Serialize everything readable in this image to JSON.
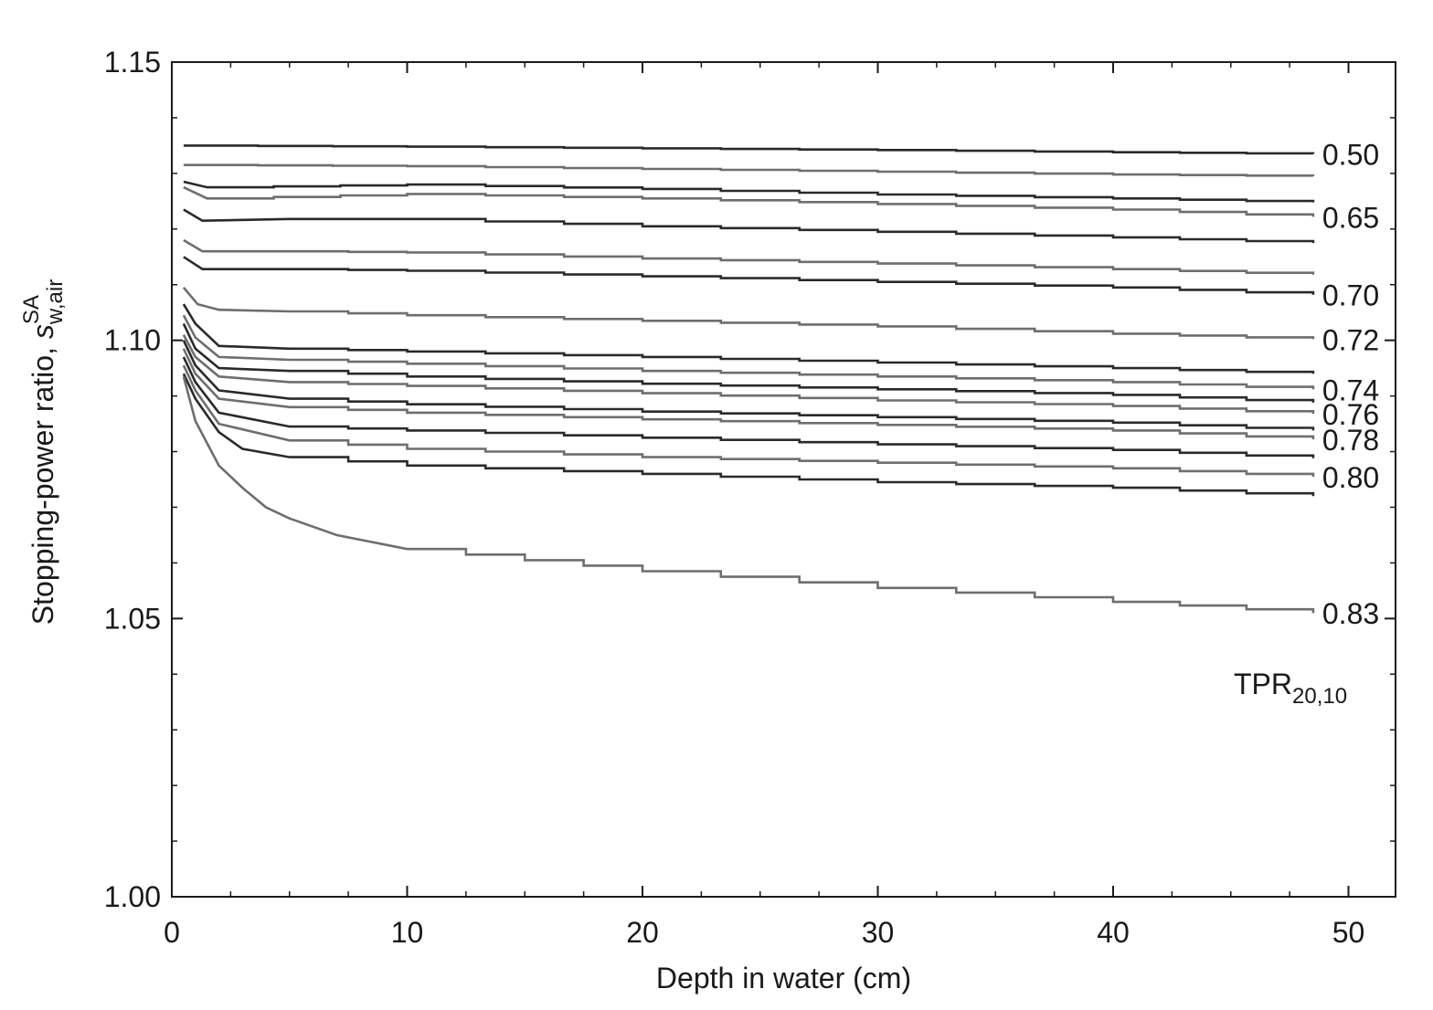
{
  "chart_data": {
    "type": "line",
    "title": "",
    "xlabel": "Depth in water (cm)",
    "ylabel": {
      "main": "Stopping-power ratio, ",
      "symbol": "s",
      "sup": "SA",
      "sub": "w,air"
    },
    "xlim": [
      0,
      52
    ],
    "ylim": [
      1.0,
      1.15
    ],
    "x_ticks": [
      0,
      10,
      20,
      30,
      40,
      50
    ],
    "x_tick_labels": [
      "0",
      "10",
      "20",
      "30",
      "40",
      "50"
    ],
    "y_ticks": [
      1.0,
      1.05,
      1.1,
      1.15
    ],
    "y_tick_labels": [
      "1.00",
      "1.05",
      "1.10",
      "1.15"
    ],
    "x_minor_step": 2.5,
    "y_minor_step": 0.01,
    "grid": false,
    "annotation": {
      "main": "TPR",
      "sub": "20,10"
    },
    "series": [
      {
        "label": "0.50",
        "x": [
          0.5,
          10,
          20,
          30,
          40,
          48.5
        ],
        "y": [
          1.135,
          1.1348,
          1.1345,
          1.1342,
          1.1338,
          1.1335
        ]
      },
      {
        "label": "",
        "x": [
          0.5,
          10,
          20,
          30,
          40,
          48.5
        ],
        "y": [
          1.1315,
          1.1313,
          1.1308,
          1.1303,
          1.1298,
          1.1295
        ]
      },
      {
        "label": "",
        "x": [
          0.5,
          1.5,
          10,
          20,
          30,
          40,
          48.5
        ],
        "y": [
          1.1285,
          1.1275,
          1.128,
          1.1272,
          1.1262,
          1.1255,
          1.1248
        ]
      },
      {
        "label": "0.65",
        "x": [
          0.5,
          1.5,
          10,
          20,
          30,
          40,
          48.5
        ],
        "y": [
          1.1275,
          1.1255,
          1.1263,
          1.1255,
          1.1245,
          1.1235,
          1.1222
        ]
      },
      {
        "label": "",
        "x": [
          0.5,
          1.3,
          5,
          10,
          20,
          30,
          40,
          48.5
        ],
        "y": [
          1.1235,
          1.1215,
          1.1218,
          1.1218,
          1.1205,
          1.1195,
          1.1185,
          1.1175
        ]
      },
      {
        "label": "",
        "x": [
          0.5,
          1.3,
          5,
          10,
          20,
          30,
          40,
          48.5
        ],
        "y": [
          1.118,
          1.116,
          1.116,
          1.1158,
          1.1147,
          1.1138,
          1.1128,
          1.1118
        ]
      },
      {
        "label": "0.70",
        "x": [
          0.5,
          1.3,
          5,
          10,
          20,
          30,
          40,
          48.5
        ],
        "y": [
          1.115,
          1.1128,
          1.1128,
          1.1125,
          1.1115,
          1.1105,
          1.1095,
          1.1082
        ]
      },
      {
        "label": "0.72",
        "x": [
          0.5,
          1.1,
          2,
          5,
          10,
          20,
          30,
          40,
          48.5
        ],
        "y": [
          1.1095,
          1.1065,
          1.1055,
          1.1052,
          1.1045,
          1.1035,
          1.1025,
          1.1012,
          1.1002
        ]
      },
      {
        "label": "",
        "x": [
          0.5,
          1,
          2,
          5,
          10,
          20,
          30,
          40,
          48.5
        ],
        "y": [
          1.1065,
          1.103,
          1.099,
          1.0985,
          1.098,
          1.097,
          1.096,
          1.095,
          1.094
        ]
      },
      {
        "label": "0.74",
        "x": [
          0.5,
          1,
          2,
          5,
          10,
          20,
          30,
          40,
          48.5
        ],
        "y": [
          1.1045,
          1.1005,
          1.097,
          1.0965,
          1.0958,
          1.0945,
          1.0935,
          1.0925,
          1.0912
        ]
      },
      {
        "label": "",
        "x": [
          0.5,
          1,
          2,
          5,
          10,
          20,
          30,
          40,
          48.5
        ],
        "y": [
          1.103,
          1.0985,
          1.095,
          1.0945,
          1.0935,
          1.0922,
          1.0912,
          1.0902,
          1.0888
        ]
      },
      {
        "label": "0.76",
        "x": [
          0.5,
          1,
          2,
          5,
          10,
          20,
          30,
          40,
          48.5
        ],
        "y": [
          1.101,
          1.097,
          1.0935,
          1.0925,
          1.0918,
          1.0905,
          1.0892,
          1.0882,
          1.0868
        ]
      },
      {
        "label": "",
        "x": [
          0.5,
          1,
          2,
          5,
          10,
          20,
          30,
          40,
          48.5
        ],
        "y": [
          1.1,
          1.0955,
          1.091,
          1.0895,
          1.0885,
          1.0872,
          1.0862,
          1.0852,
          1.0838
        ]
      },
      {
        "label": "0.78",
        "x": [
          0.5,
          1,
          2,
          5,
          10,
          20,
          30,
          40,
          48.5
        ],
        "y": [
          1.0985,
          1.094,
          1.0895,
          1.088,
          1.087,
          1.0858,
          1.0848,
          1.0838,
          1.0822
        ]
      },
      {
        "label": "",
        "x": [
          0.5,
          1,
          2,
          5,
          10,
          20,
          30,
          40,
          48.5
        ],
        "y": [
          1.097,
          1.0925,
          1.087,
          1.0845,
          1.0838,
          1.0825,
          1.0813,
          1.0803,
          1.0788
        ]
      },
      {
        "label": "0.80",
        "x": [
          0.5,
          1,
          2,
          5,
          10,
          20,
          30,
          40,
          48.5
        ],
        "y": [
          1.0955,
          1.091,
          1.085,
          1.082,
          1.0805,
          1.079,
          1.078,
          1.077,
          1.0755
        ]
      },
      {
        "label": "",
        "x": [
          0.5,
          1,
          2,
          3,
          5,
          10,
          20,
          30,
          40,
          48.5
        ],
        "y": [
          1.094,
          1.0895,
          1.0835,
          1.0805,
          1.079,
          1.0775,
          1.076,
          1.0745,
          1.0735,
          1.072
        ]
      },
      {
        "label": "0.83",
        "x": [
          0.5,
          1,
          2,
          3,
          4,
          5,
          7,
          10,
          15,
          20,
          30,
          40,
          48.5
        ],
        "y": [
          1.0935,
          1.0855,
          1.0775,
          1.0735,
          1.07,
          1.068,
          1.065,
          1.0625,
          1.0605,
          1.0585,
          1.0555,
          1.053,
          1.051
        ]
      }
    ]
  }
}
